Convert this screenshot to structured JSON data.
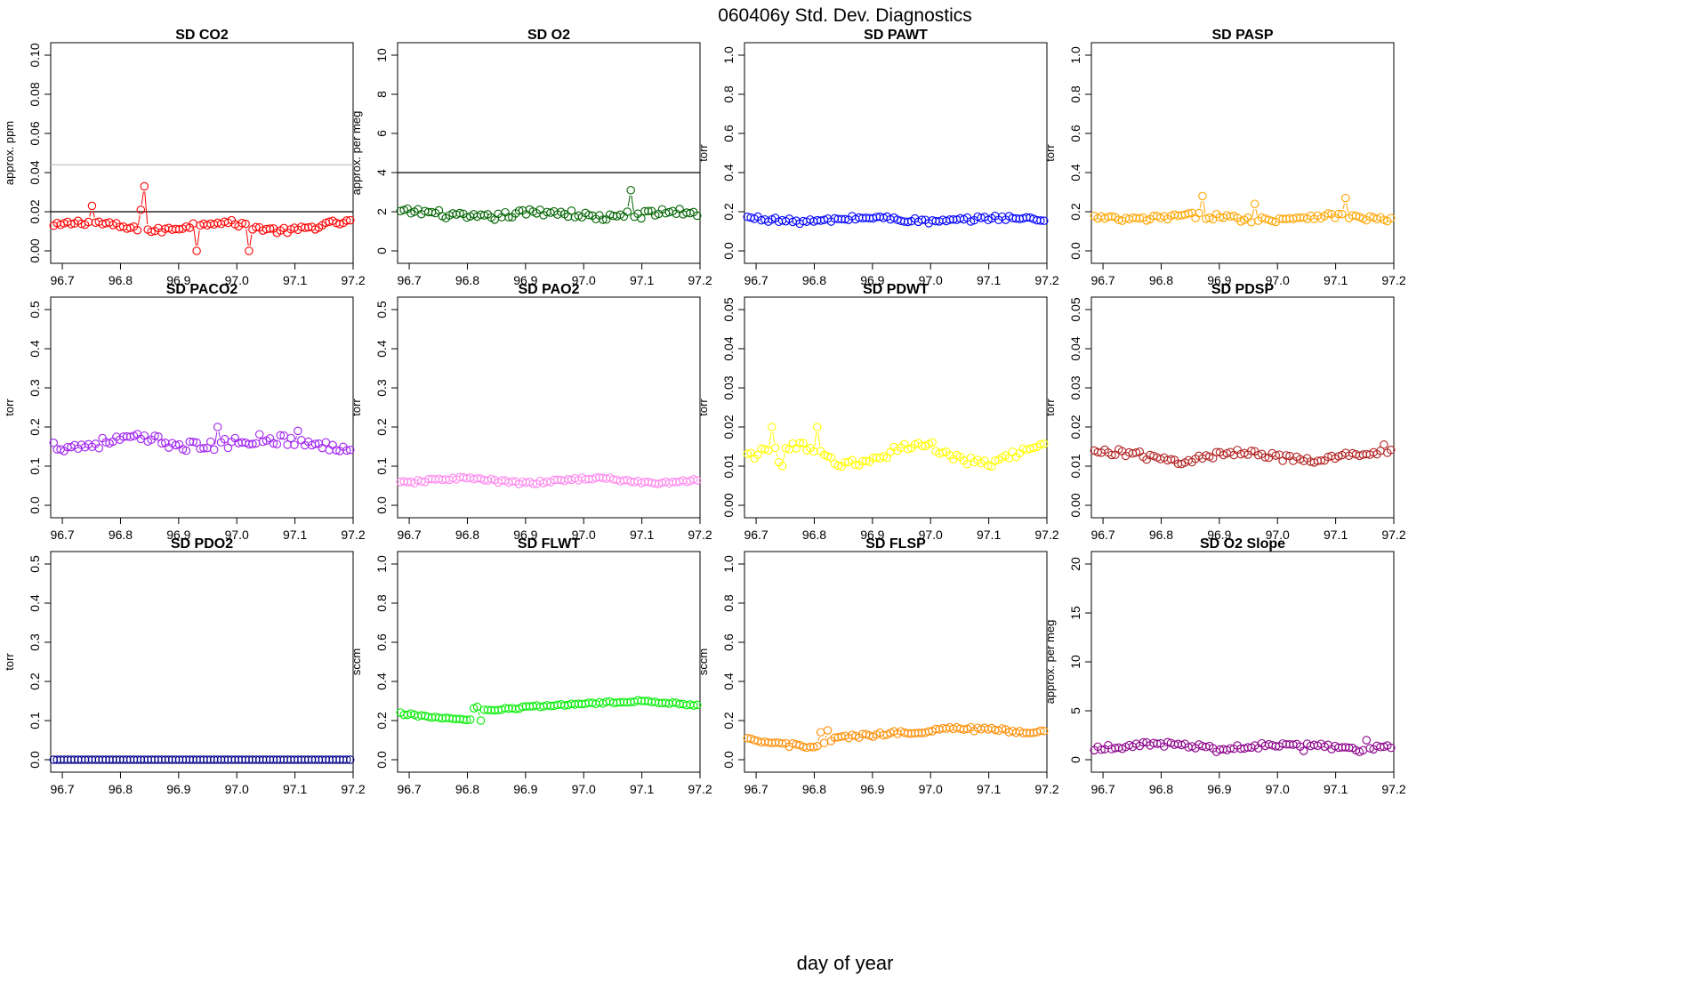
{
  "figure": {
    "title": "060406y   Std. Dev. Diagnostics",
    "xlabel": "day of year"
  },
  "chart_data": [
    {
      "type": "line",
      "title": "SD CO2",
      "ylabel": "approx. ppm",
      "color": "#ff0000",
      "xlim": [
        96.68,
        97.2
      ],
      "ylim": [
        0,
        0.1
      ],
      "yticks": [
        0,
        0.02,
        0.04,
        0.06,
        0.08,
        0.1
      ],
      "ytick_labels": [
        "0.00",
        "0.02",
        "0.04",
        "0.06",
        "0.08",
        "0.10"
      ],
      "xticks": [
        96.7,
        96.8,
        96.9,
        97.0,
        97.1,
        97.2
      ],
      "xtick_labels": [
        "96.7",
        "96.8",
        "96.9",
        "97.0",
        "97.1",
        "97.2"
      ],
      "hlines": [
        {
          "y": 0.02,
          "color": "#000000"
        },
        {
          "y": 0.044,
          "color": "#bbbbbb"
        }
      ],
      "series": {
        "x_start": 96.685,
        "x_end": 97.195,
        "mean": 0.0125,
        "amp": 0.0022,
        "noise": 0.0014,
        "spikes": [
          [
            11,
            0.023
          ],
          [
            25,
            0.021
          ],
          [
            26,
            0.033
          ],
          [
            41,
            0.0
          ],
          [
            56,
            0.0
          ]
        ]
      }
    },
    {
      "type": "line",
      "title": "SD O2",
      "ylabel": "approx. per meg",
      "color": "#006400",
      "xlim": [
        96.68,
        97.2
      ],
      "ylim": [
        0,
        10
      ],
      "yticks": [
        0,
        2,
        4,
        6,
        8,
        10
      ],
      "ytick_labels": [
        "0",
        "2",
        "4",
        "6",
        "8",
        "10"
      ],
      "xticks": [
        96.7,
        96.8,
        96.9,
        97.0,
        97.1,
        97.2
      ],
      "xtick_labels": [
        "96.7",
        "96.8",
        "96.9",
        "97.0",
        "97.1",
        "97.2"
      ],
      "hlines": [
        {
          "y": 4,
          "color": "#000000"
        }
      ],
      "series": {
        "x_start": 96.685,
        "x_end": 97.195,
        "mean": 1.85,
        "amp": 0.15,
        "noise": 0.18,
        "spikes": [
          [
            66,
            3.1
          ],
          [
            65,
            2.0
          ]
        ]
      }
    },
    {
      "type": "line",
      "title": "SD PAWT",
      "ylabel": "torr",
      "color": "#0000ff",
      "xlim": [
        96.68,
        97.2
      ],
      "ylim": [
        0,
        1
      ],
      "yticks": [
        0,
        0.2,
        0.4,
        0.6,
        0.8,
        1.0
      ],
      "ytick_labels": [
        "0.0",
        "0.2",
        "0.4",
        "0.6",
        "0.8",
        "1.0"
      ],
      "xticks": [
        96.7,
        96.8,
        96.9,
        97.0,
        97.1,
        97.2
      ],
      "xtick_labels": [
        "96.7",
        "96.8",
        "96.9",
        "97.0",
        "97.1",
        "97.2"
      ],
      "hlines": [],
      "series": {
        "x_start": 96.685,
        "x_end": 97.195,
        "mean": 0.16,
        "amp": 0.01,
        "noise": 0.012,
        "spikes": []
      }
    },
    {
      "type": "line",
      "title": "SD PASP",
      "ylabel": "torr",
      "color": "#ffa500",
      "xlim": [
        96.68,
        97.2
      ],
      "ylim": [
        0,
        1
      ],
      "yticks": [
        0,
        0.2,
        0.4,
        0.6,
        0.8,
        1.0
      ],
      "ytick_labels": [
        "0.0",
        "0.2",
        "0.4",
        "0.6",
        "0.8",
        "1.0"
      ],
      "xticks": [
        96.7,
        96.8,
        96.9,
        97.0,
        97.1,
        97.2
      ],
      "xtick_labels": [
        "96.7",
        "96.8",
        "96.9",
        "97.0",
        "97.1",
        "97.2"
      ],
      "hlines": [],
      "series": {
        "x_start": 96.685,
        "x_end": 97.195,
        "mean": 0.17,
        "amp": 0.01,
        "noise": 0.015,
        "spikes": [
          [
            31,
            0.28
          ],
          [
            46,
            0.24
          ],
          [
            72,
            0.27
          ]
        ]
      }
    },
    {
      "type": "line",
      "title": "SD PACO2",
      "ylabel": "torr",
      "color": "#a020f0",
      "xlim": [
        96.68,
        97.2
      ],
      "ylim": [
        0,
        0.5
      ],
      "yticks": [
        0,
        0.1,
        0.2,
        0.3,
        0.4,
        0.5
      ],
      "ytick_labels": [
        "0.0",
        "0.1",
        "0.2",
        "0.3",
        "0.4",
        "0.5"
      ],
      "xticks": [
        96.7,
        96.8,
        96.9,
        97.0,
        97.1,
        97.2
      ],
      "xtick_labels": [
        "96.7",
        "96.8",
        "96.9",
        "97.0",
        "97.1",
        "97.2"
      ],
      "hlines": [],
      "series": {
        "x_start": 96.685,
        "x_end": 97.195,
        "mean": 0.16,
        "amp": 0.01,
        "noise": 0.013,
        "spikes": [
          [
            47,
            0.2
          ],
          [
            70,
            0.19
          ]
        ]
      }
    },
    {
      "type": "line",
      "title": "SD PAO2",
      "ylabel": "torr",
      "color": "#ff88ee",
      "xlim": [
        96.68,
        97.2
      ],
      "ylim": [
        0,
        0.5
      ],
      "yticks": [
        0,
        0.1,
        0.2,
        0.3,
        0.4,
        0.5
      ],
      "ytick_labels": [
        "0.0",
        "0.1",
        "0.2",
        "0.3",
        "0.4",
        "0.5"
      ],
      "xticks": [
        96.7,
        96.8,
        96.9,
        97.0,
        97.1,
        97.2
      ],
      "xtick_labels": [
        "96.7",
        "96.8",
        "96.9",
        "97.0",
        "97.1",
        "97.2"
      ],
      "hlines": [],
      "series": {
        "x_start": 96.685,
        "x_end": 97.195,
        "mean": 0.063,
        "amp": 0.006,
        "noise": 0.004,
        "spikes": []
      }
    },
    {
      "type": "line",
      "title": "SD PDWT",
      "ylabel": "torr",
      "color": "#ffff00",
      "xlim": [
        96.68,
        97.2
      ],
      "ylim": [
        0,
        0.05
      ],
      "yticks": [
        0,
        0.01,
        0.02,
        0.03,
        0.04,
        0.05
      ],
      "ytick_labels": [
        "0.00",
        "0.01",
        "0.02",
        "0.03",
        "0.04",
        "0.05"
      ],
      "xticks": [
        96.7,
        96.8,
        96.9,
        97.0,
        97.1,
        97.2
      ],
      "xtick_labels": [
        "96.7",
        "96.8",
        "96.9",
        "97.0",
        "97.1",
        "97.2"
      ],
      "hlines": [],
      "series": {
        "x_start": 96.685,
        "x_end": 97.195,
        "mean": 0.013,
        "amp": 0.0025,
        "noise": 0.0012,
        "spikes": [
          [
            7,
            0.02
          ],
          [
            20,
            0.02
          ],
          [
            9,
            0.011
          ],
          [
            10,
            0.01
          ]
        ]
      }
    },
    {
      "type": "line",
      "title": "SD PDSP",
      "ylabel": "torr",
      "color": "#b22222",
      "xlim": [
        96.68,
        97.2
      ],
      "ylim": [
        0,
        0.05
      ],
      "yticks": [
        0,
        0.01,
        0.02,
        0.03,
        0.04,
        0.05
      ],
      "ytick_labels": [
        "0.00",
        "0.01",
        "0.02",
        "0.03",
        "0.04",
        "0.05"
      ],
      "xticks": [
        96.7,
        96.8,
        96.9,
        97.0,
        97.1,
        97.2
      ],
      "xtick_labels": [
        "96.7",
        "96.8",
        "96.9",
        "97.0",
        "97.1",
        "97.2"
      ],
      "hlines": [],
      "series": {
        "x_start": 96.685,
        "x_end": 97.195,
        "mean": 0.0125,
        "amp": 0.0012,
        "noise": 0.0009,
        "spikes": [
          [
            83,
            0.0155
          ]
        ]
      }
    },
    {
      "type": "line",
      "title": "SD PDO2",
      "ylabel": "torr",
      "color": "#00008b",
      "xlim": [
        96.68,
        97.2
      ],
      "ylim": [
        0,
        0.5
      ],
      "yticks": [
        0,
        0.1,
        0.2,
        0.3,
        0.4,
        0.5
      ],
      "ytick_labels": [
        "0.0",
        "0.1",
        "0.2",
        "0.3",
        "0.4",
        "0.5"
      ],
      "xticks": [
        96.7,
        96.8,
        96.9,
        97.0,
        97.1,
        97.2
      ],
      "xtick_labels": [
        "96.7",
        "96.8",
        "96.9",
        "97.0",
        "97.1",
        "97.2"
      ],
      "hlines": [],
      "series": {
        "x_start": 96.685,
        "x_end": 97.195,
        "mean": 0.0,
        "amp": 0,
        "noise": 0,
        "spikes": []
      }
    },
    {
      "type": "line",
      "title": "SD FLWT",
      "ylabel": "sccm",
      "color": "#00ee00",
      "xlim": [
        96.68,
        97.2
      ],
      "ylim": [
        0,
        1
      ],
      "yticks": [
        0,
        0.2,
        0.4,
        0.6,
        0.8,
        1.0
      ],
      "ytick_labels": [
        "0.0",
        "0.2",
        "0.4",
        "0.6",
        "0.8",
        "1.0"
      ],
      "xticks": [
        96.7,
        96.8,
        96.9,
        97.0,
        97.1,
        97.2
      ],
      "xtick_labels": [
        "96.7",
        "96.8",
        "96.9",
        "97.0",
        "97.1",
        "97.2"
      ],
      "hlines": [],
      "series": {
        "x_start": 96.685,
        "x_end": 97.195,
        "mean": 0.26,
        "amp": 0,
        "noise": 0.006,
        "trend": [
          [
            0,
            0.235
          ],
          [
            20,
            0.2
          ],
          [
            21,
            0.26
          ],
          [
            24,
            0.25
          ],
          [
            45,
            0.28
          ],
          [
            70,
            0.3
          ],
          [
            85,
            0.28
          ]
        ],
        "spikes": [
          [
            22,
            0.27
          ],
          [
            23,
            0.2
          ]
        ]
      }
    },
    {
      "type": "line",
      "title": "SD FLSP",
      "ylabel": "sccm",
      "color": "#ff8c00",
      "xlim": [
        96.68,
        97.2
      ],
      "ylim": [
        0,
        1
      ],
      "yticks": [
        0,
        0.2,
        0.4,
        0.6,
        0.8,
        1.0
      ],
      "ytick_labels": [
        "0.0",
        "0.2",
        "0.4",
        "0.6",
        "0.8",
        "1.0"
      ],
      "xticks": [
        96.7,
        96.8,
        96.9,
        97.0,
        97.1,
        97.2
      ],
      "xtick_labels": [
        "96.7",
        "96.8",
        "96.9",
        "97.0",
        "97.1",
        "97.2"
      ],
      "hlines": [],
      "series": {
        "x_start": 96.685,
        "x_end": 97.195,
        "mean": 0.13,
        "amp": 0,
        "noise": 0.01,
        "trend": [
          [
            0,
            0.1
          ],
          [
            20,
            0.06
          ],
          [
            25,
            0.11
          ],
          [
            45,
            0.14
          ],
          [
            60,
            0.16
          ],
          [
            85,
            0.14
          ]
        ],
        "spikes": [
          [
            21,
            0.14
          ],
          [
            23,
            0.15
          ]
        ]
      }
    },
    {
      "type": "line",
      "title": "SD O2 Slope",
      "ylabel": "approx. per meg",
      "color": "#8b008b",
      "xlim": [
        96.68,
        97.2
      ],
      "ylim": [
        0,
        20
      ],
      "yticks": [
        0,
        5,
        10,
        15,
        20
      ],
      "ytick_labels": [
        "0",
        "5",
        "10",
        "15",
        "20"
      ],
      "xticks": [
        96.7,
        96.8,
        96.9,
        97.0,
        97.1,
        97.2
      ],
      "xtick_labels": [
        "96.7",
        "96.8",
        "96.9",
        "97.0",
        "97.1",
        "97.2"
      ],
      "hlines": [],
      "series": {
        "x_start": 96.685,
        "x_end": 97.195,
        "mean": 1.4,
        "amp": 0.2,
        "noise": 0.25,
        "spikes": [
          [
            35,
            0.8
          ],
          [
            60,
            0.9
          ],
          [
            76,
            0.8
          ],
          [
            78,
            2.0
          ]
        ]
      }
    }
  ]
}
